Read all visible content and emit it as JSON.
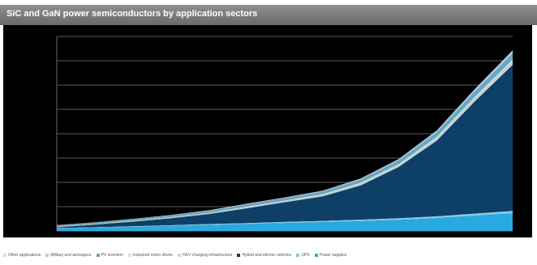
{
  "slide": {
    "title": "SiC and GaN power semiconductors by application sectors"
  },
  "chart_data": {
    "type": "area",
    "stacked": true,
    "title": "SiC and GaN power semiconductors by application sectors",
    "xlabel": "",
    "ylabel": "",
    "x": [
      0,
      1,
      2,
      3,
      4,
      5,
      6,
      7,
      8,
      9,
      10,
      11,
      12
    ],
    "ylim": [
      0,
      8
    ],
    "grid": true,
    "legend_position": "bottom",
    "series": [
      {
        "name": "Power supplies",
        "color": "#29a9e1",
        "values": [
          0.1,
          0.13,
          0.16,
          0.2,
          0.24,
          0.28,
          0.32,
          0.36,
          0.4,
          0.45,
          0.52,
          0.62,
          0.72
        ]
      },
      {
        "name": "UPS",
        "color": "#7ecbe8",
        "values": [
          0.03,
          0.03,
          0.04,
          0.04,
          0.05,
          0.05,
          0.06,
          0.06,
          0.07,
          0.08,
          0.09,
          0.1,
          0.11
        ]
      },
      {
        "name": "Hybrid and electric vehicles",
        "color": "#0e3f66",
        "values": [
          0.02,
          0.1,
          0.18,
          0.28,
          0.4,
          0.6,
          0.8,
          1.0,
          1.4,
          2.1,
          3.1,
          4.6,
          6.0
        ]
      },
      {
        "name": "HEV charging infrastructure",
        "color": "#bcd9ea",
        "values": [
          0.02,
          0.02,
          0.02,
          0.03,
          0.03,
          0.04,
          0.04,
          0.05,
          0.06,
          0.07,
          0.09,
          0.11,
          0.13
        ]
      },
      {
        "name": "Industrial motor drives",
        "color": "#e8e1c5",
        "values": [
          0.02,
          0.02,
          0.03,
          0.03,
          0.03,
          0.04,
          0.04,
          0.05,
          0.06,
          0.06,
          0.08,
          0.09,
          0.1
        ]
      },
      {
        "name": "PV inverters",
        "color": "#5fa9d6",
        "values": [
          0.03,
          0.04,
          0.05,
          0.05,
          0.06,
          0.07,
          0.08,
          0.09,
          0.11,
          0.13,
          0.16,
          0.2,
          0.24
        ]
      },
      {
        "name": "Military and aerospace",
        "color": "#a9d1e6",
        "values": [
          0.01,
          0.01,
          0.01,
          0.02,
          0.02,
          0.02,
          0.02,
          0.03,
          0.03,
          0.04,
          0.05,
          0.06,
          0.07
        ]
      },
      {
        "name": "Other applications",
        "color": "#d9dde2",
        "values": [
          0.01,
          0.01,
          0.01,
          0.01,
          0.02,
          0.02,
          0.02,
          0.02,
          0.03,
          0.03,
          0.04,
          0.05,
          0.06
        ]
      }
    ]
  }
}
